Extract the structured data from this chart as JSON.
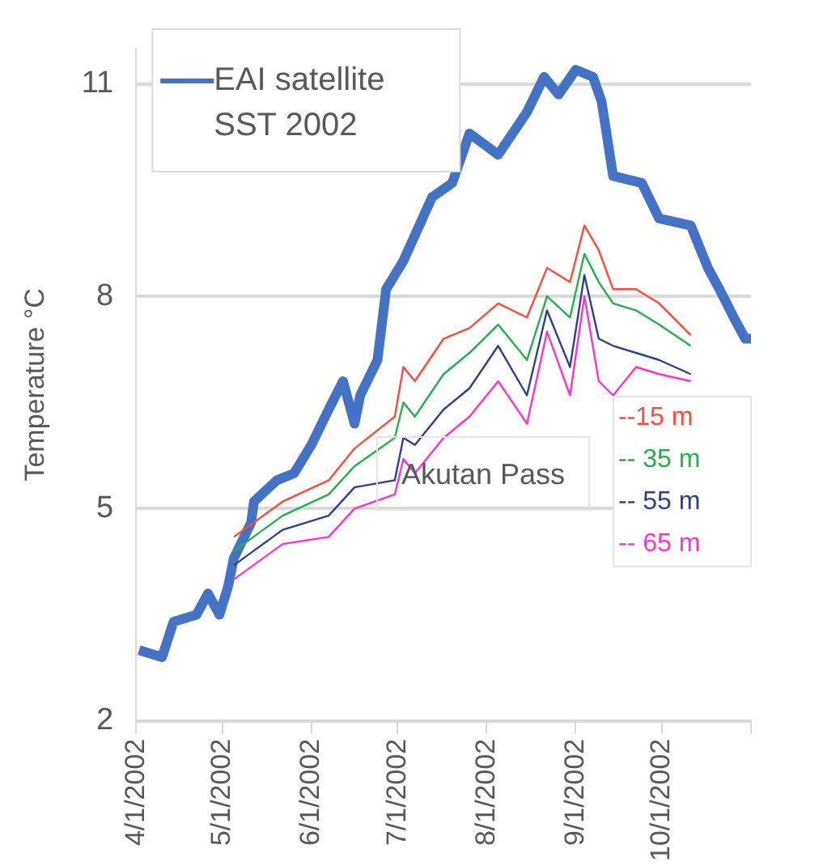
{
  "chart_data": {
    "type": "line",
    "ylabel": "Temperature °C",
    "ylim": [
      2,
      11.5
    ],
    "yticks": [
      2,
      5,
      8,
      11
    ],
    "xlim": [
      "2002-04-01",
      "2002-11-01"
    ],
    "xticks": [
      {
        "value": "2002-04-01",
        "label": "4/1/2002"
      },
      {
        "value": "2002-05-01",
        "label": "5/1/2002"
      },
      {
        "value": "2002-06-01",
        "label": "6/1/2002"
      },
      {
        "value": "2002-07-01",
        "label": "7/1/2002"
      },
      {
        "value": "2002-08-01",
        "label": "8/1/2002"
      },
      {
        "value": "2002-09-01",
        "label": "9/1/2002"
      },
      {
        "value": "2002-10-01",
        "label": "10/1/2002"
      },
      {
        "value": "2002-11-01",
        "label": null
      }
    ],
    "grid": "y",
    "legend": "top left",
    "marker": "none",
    "line_style": "solid",
    "annotations": [
      "Akutan Pass"
    ],
    "series": [
      {
        "name": "EAI satellite SST 2002",
        "color": "#4472c4",
        "x": [
          "2002-04-02",
          "2002-04-10",
          "2002-04-14",
          "2002-04-22",
          "2002-04-26",
          "2002-04-30",
          "2002-05-03",
          "2002-05-05",
          "2002-05-11",
          "2002-05-12",
          "2002-05-20",
          "2002-05-26",
          "2002-06-01",
          "2002-06-07",
          "2002-06-12",
          "2002-06-16",
          "2002-06-18",
          "2002-06-24",
          "2002-06-27",
          "2002-07-03",
          "2002-07-13",
          "2002-07-20",
          "2002-07-26",
          "2002-08-05",
          "2002-08-15",
          "2002-08-21",
          "2002-08-26",
          "2002-09-01",
          "2002-09-07",
          "2002-09-10",
          "2002-09-14",
          "2002-09-24",
          "2002-09-30",
          "2002-10-11",
          "2002-10-17",
          "2002-10-21",
          "2002-10-26",
          "2002-10-30",
          "2002-11-01"
        ],
        "values": [
          3.0,
          2.9,
          3.4,
          3.5,
          3.8,
          3.5,
          3.9,
          4.3,
          4.8,
          5.1,
          5.4,
          5.5,
          5.9,
          6.4,
          6.8,
          6.2,
          6.6,
          7.1,
          8.1,
          8.5,
          9.4,
          9.6,
          10.3,
          10.0,
          10.6,
          11.1,
          10.85,
          11.2,
          11.1,
          10.75,
          9.7,
          9.6,
          9.1,
          9.0,
          8.4,
          8.1,
          7.7,
          7.4,
          7.4
        ]
      },
      {
        "name": "--15 m",
        "color": "#ff4b3a",
        "x": [
          "2002-05-05",
          "2002-05-22",
          "2002-06-07",
          "2002-06-16",
          "2002-06-30",
          "2002-07-03",
          "2002-07-07",
          "2002-07-17",
          "2002-07-26",
          "2002-08-05",
          "2002-08-15",
          "2002-08-22",
          "2002-08-30",
          "2002-09-04",
          "2002-09-09",
          "2002-09-14",
          "2002-09-22",
          "2002-09-30",
          "2002-10-11"
        ],
        "values": [
          4.6,
          5.1,
          5.4,
          5.85,
          6.3,
          7.0,
          6.8,
          7.4,
          7.55,
          7.9,
          7.7,
          8.4,
          8.2,
          9.0,
          8.65,
          8.1,
          8.1,
          7.9,
          7.45
        ]
      },
      {
        "name": "-- 35 m",
        "color": "#22b14c",
        "x": [
          "2002-05-05",
          "2002-05-22",
          "2002-06-07",
          "2002-06-16",
          "2002-06-30",
          "2002-07-03",
          "2002-07-07",
          "2002-07-17",
          "2002-07-26",
          "2002-08-05",
          "2002-08-15",
          "2002-08-22",
          "2002-08-30",
          "2002-09-04",
          "2002-09-09",
          "2002-09-14",
          "2002-09-22",
          "2002-09-30",
          "2002-10-11"
        ],
        "values": [
          4.4,
          4.9,
          5.2,
          5.6,
          6.0,
          6.5,
          6.3,
          6.9,
          7.2,
          7.6,
          7.1,
          8.0,
          7.7,
          8.6,
          8.2,
          7.9,
          7.8,
          7.6,
          7.3
        ]
      },
      {
        "name": "-- 55 m",
        "color": "#2f3f8f",
        "x": [
          "2002-05-05",
          "2002-05-22",
          "2002-06-07",
          "2002-06-16",
          "2002-06-30",
          "2002-07-03",
          "2002-07-07",
          "2002-07-17",
          "2002-07-26",
          "2002-08-05",
          "2002-08-15",
          "2002-08-22",
          "2002-08-30",
          "2002-09-04",
          "2002-09-09",
          "2002-09-14",
          "2002-09-22",
          "2002-09-30",
          "2002-10-11"
        ],
        "values": [
          4.2,
          4.7,
          4.9,
          5.3,
          5.4,
          6.0,
          5.9,
          6.4,
          6.7,
          7.3,
          6.6,
          7.8,
          7.0,
          8.3,
          7.4,
          7.3,
          7.2,
          7.1,
          6.9
        ]
      },
      {
        "name": "-- 65 m",
        "color": "#ff33cc",
        "x": [
          "2002-05-05",
          "2002-05-22",
          "2002-06-07",
          "2002-06-16",
          "2002-06-30",
          "2002-07-03",
          "2002-07-07",
          "2002-07-17",
          "2002-07-26",
          "2002-08-05",
          "2002-08-15",
          "2002-08-22",
          "2002-08-30",
          "2002-09-04",
          "2002-09-09",
          "2002-09-14",
          "2002-09-22",
          "2002-09-30",
          "2002-10-11"
        ],
        "values": [
          4.0,
          4.5,
          4.6,
          5.0,
          5.2,
          5.7,
          5.5,
          6.0,
          6.3,
          6.8,
          6.2,
          7.5,
          6.6,
          8.0,
          6.8,
          6.6,
          7.0,
          6.9,
          6.8
        ]
      }
    ]
  }
}
